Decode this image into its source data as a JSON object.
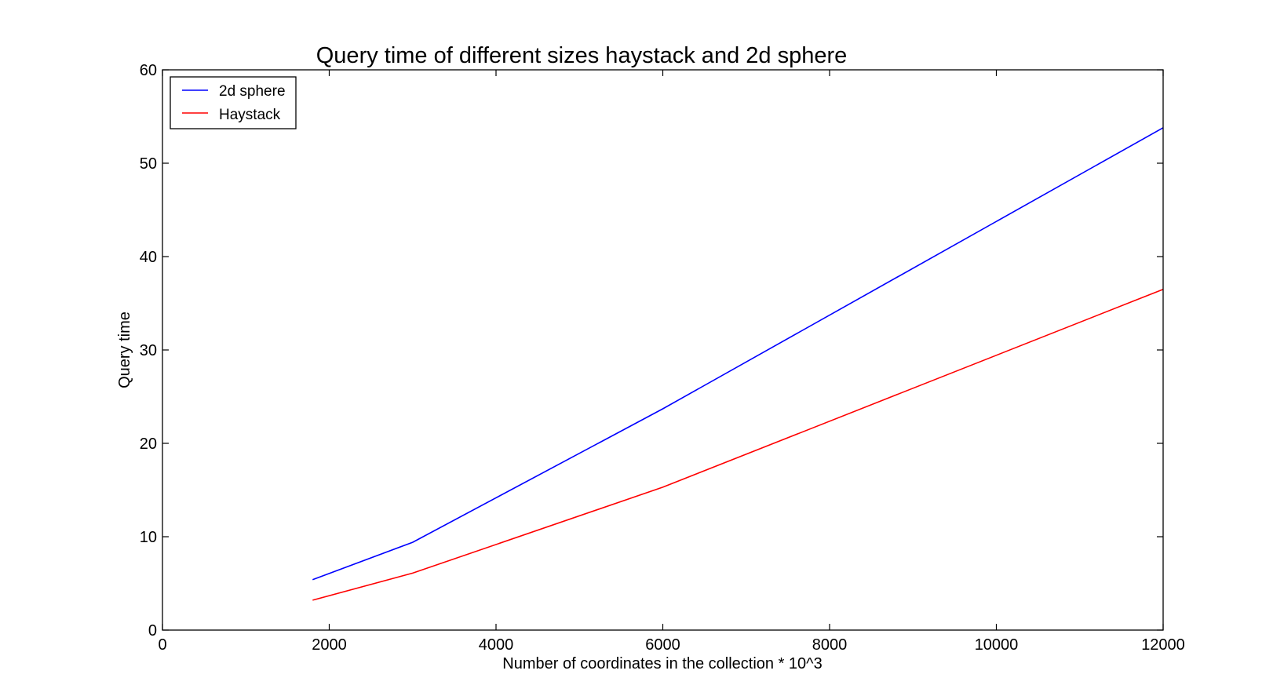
{
  "chart_data": {
    "type": "line",
    "title": "Query time of different sizes haystack and 2d sphere",
    "xlabel": "Number of coordinates in the collection * 10^3",
    "ylabel": "Query time",
    "xlim": [
      0,
      12000
    ],
    "ylim": [
      0,
      60
    ],
    "xticks": [
      0,
      2000,
      4000,
      6000,
      8000,
      10000,
      12000
    ],
    "yticks": [
      0,
      10,
      20,
      30,
      40,
      50,
      60
    ],
    "grid": false,
    "legend_position": "top-left",
    "series": [
      {
        "name": "2d sphere",
        "color": "#0000ff",
        "x": [
          1800,
          3000,
          6000,
          12000
        ],
        "y": [
          5.4,
          9.4,
          23.7,
          53.8
        ]
      },
      {
        "name": "Haystack",
        "color": "#ff0000",
        "x": [
          1800,
          3000,
          6000,
          12000
        ],
        "y": [
          3.2,
          6.1,
          15.3,
          36.5
        ]
      }
    ]
  }
}
